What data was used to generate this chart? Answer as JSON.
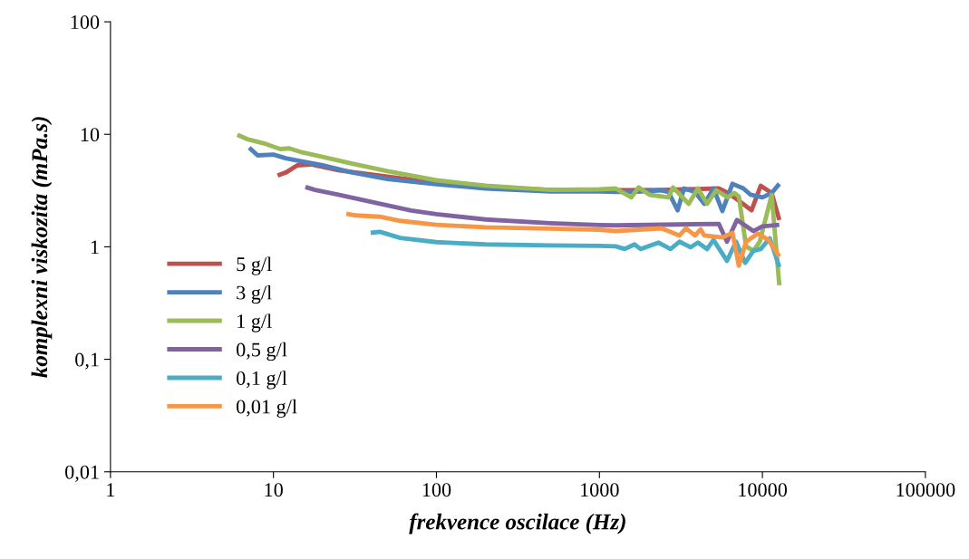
{
  "chart_data": {
    "type": "line",
    "xlabel": "frekvence oscilace (Hz)",
    "ylabel": "komplexni viskozita (mPa.s)",
    "log": "xy",
    "xlim": [
      1,
      100000
    ],
    "xticks": [
      1,
      10,
      100,
      1000,
      10000,
      100000
    ],
    "ylim": [
      0.01,
      100
    ],
    "yticks": [
      {
        "value": 0.01,
        "label": "0,01"
      },
      {
        "value": 0.1,
        "label": "0,1"
      },
      1,
      10,
      100
    ],
    "grid": false,
    "legend": "lower left",
    "marker": "none",
    "line_style": "solid",
    "series": [
      {
        "name": "5 g/l",
        "color": "#c0504d",
        "x": [
          10.6,
          12,
          14,
          17,
          25,
          50,
          100,
          200,
          500,
          1000,
          1259,
          2400,
          5400,
          6140,
          6980,
          8580,
          9760,
          11400,
          12700
        ],
        "values": [
          4.3,
          4.6,
          5.3,
          5.4,
          4.8,
          4.2,
          3.7,
          3.4,
          3.2,
          3.2,
          3.18,
          3.2,
          3.3,
          3.01,
          2.64,
          2.11,
          3.49,
          3.01,
          1.73
        ]
      },
      {
        "name": "3 g/l",
        "color": "#4f81bd",
        "x": [
          7.1,
          8,
          10,
          12,
          20,
          30,
          50,
          100,
          200,
          500,
          1000,
          1259,
          1640,
          2400,
          2650,
          3020,
          3300,
          3860,
          4400,
          5010,
          5680,
          6550,
          7640,
          8470,
          10000,
          11400,
          12700
        ],
        "values": [
          7.6,
          6.5,
          6.6,
          6.1,
          5.3,
          4.6,
          4.0,
          3.6,
          3.3,
          3.1,
          3.1,
          3.07,
          3.07,
          3.18,
          3.07,
          2.11,
          3.3,
          3.07,
          2.41,
          3.3,
          2.08,
          3.63,
          3.3,
          2.9,
          2.75,
          3.01,
          3.63
        ]
      },
      {
        "name": "1 g/l",
        "color": "#9bbb59",
        "x": [
          6.0,
          7,
          9,
          11,
          12.5,
          15,
          20,
          30,
          50,
          100,
          200,
          500,
          1000,
          1259,
          1570,
          1740,
          2030,
          2650,
          2830,
          3530,
          4020,
          4580,
          5200,
          6140,
          6720,
          7170,
          7940,
          8800,
          9630,
          11400,
          12700
        ],
        "values": [
          9.9,
          9.0,
          8.2,
          7.4,
          7.5,
          6.9,
          6.3,
          5.5,
          4.7,
          3.9,
          3.5,
          3.2,
          3.24,
          3.3,
          2.75,
          3.37,
          2.9,
          2.75,
          3.37,
          2.41,
          3.3,
          2.41,
          3.18,
          2.75,
          3.01,
          2.8,
          1.01,
          0.92,
          1.11,
          2.9,
          0.455
        ]
      },
      {
        "name": "0,5 g/l",
        "color": "#8064a2",
        "x": [
          15.7,
          18,
          25,
          40,
          70,
          100,
          200,
          500,
          1000,
          1259,
          5400,
          6060,
          6980,
          8800,
          10000,
          12700
        ],
        "values": [
          3.4,
          3.2,
          2.9,
          2.5,
          2.1,
          1.95,
          1.75,
          1.62,
          1.56,
          1.55,
          1.6,
          1.11,
          1.73,
          1.38,
          1.52,
          1.57
        ]
      },
      {
        "name": "0,1 g/l",
        "color": "#4bacc6",
        "x": [
          39.5,
          45,
          60,
          100,
          200,
          500,
          1000,
          1259,
          1430,
          1640,
          1790,
          2310,
          2730,
          3100,
          3620,
          4020,
          4580,
          5010,
          6060,
          6890,
          7840,
          8800,
          9760,
          11100,
          12700
        ],
        "values": [
          1.33,
          1.36,
          1.2,
          1.1,
          1.05,
          1.03,
          1.02,
          1.01,
          0.955,
          1.05,
          0.955,
          1.09,
          0.955,
          1.11,
          0.99,
          1.09,
          0.955,
          1.15,
          0.75,
          1.11,
          0.72,
          0.92,
          0.955,
          1.19,
          0.66
        ]
      },
      {
        "name": "0,01 g/l",
        "color": "#f79646",
        "x": [
          28,
          32,
          45,
          60,
          100,
          200,
          500,
          1000,
          1259,
          2400,
          3100,
          3390,
          3860,
          4180,
          4400,
          5680,
          6550,
          7170,
          7940,
          9390,
          10900,
          12700
        ],
        "values": [
          1.97,
          1.9,
          1.85,
          1.7,
          1.57,
          1.49,
          1.45,
          1.42,
          1.38,
          1.46,
          1.26,
          1.46,
          1.26,
          1.43,
          1.26,
          1.21,
          1.33,
          0.68,
          1.11,
          1.31,
          1.15,
          0.82
        ]
      }
    ]
  }
}
